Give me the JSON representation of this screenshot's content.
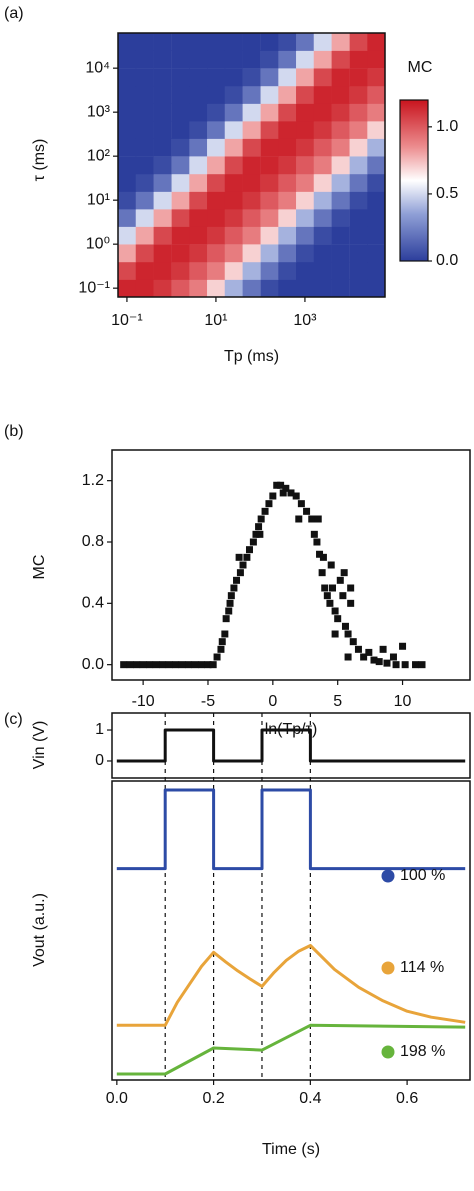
{
  "chart_data": [
    {
      "type": "heatmap",
      "panel_label": "(a)",
      "xlabel": "Tp (ms)",
      "ylabel": "τ (ms)",
      "colorbar_label": "MC",
      "xscale": "log",
      "yscale": "log",
      "xlim": [
        0.063,
        63000
      ],
      "ylim": [
        0.063,
        63000
      ],
      "xticks": [
        {
          "value": 0.1,
          "label": "10⁻¹"
        },
        {
          "value": 10,
          "label": "10¹"
        },
        {
          "value": 1000,
          "label": "10³"
        }
      ],
      "yticks": [
        {
          "value": 0.1,
          "label": "10⁻¹"
        },
        {
          "value": 1,
          "label": "10⁰"
        },
        {
          "value": 10,
          "label": "10¹"
        },
        {
          "value": 100,
          "label": "10²"
        },
        {
          "value": 1000,
          "label": "10³"
        },
        {
          "value": 10000,
          "label": "10⁴"
        }
      ],
      "x": [
        0.1,
        0.25,
        0.63,
        1.6,
        4,
        10,
        25,
        63,
        160,
        400,
        1000,
        2500,
        6300,
        16000,
        40000
      ],
      "y": [
        0.1,
        0.25,
        0.63,
        1.6,
        4,
        10,
        25,
        63,
        160,
        400,
        1000,
        2500,
        6300,
        16000,
        40000
      ],
      "z": [
        [
          1.15,
          1.15,
          1.1,
          1.0,
          0.9,
          0.7,
          0.4,
          0.2,
          0.05,
          0,
          0,
          0,
          0,
          0,
          0
        ],
        [
          1.05,
          1.15,
          1.15,
          1.1,
          1.0,
          0.9,
          0.7,
          0.4,
          0.2,
          0.05,
          0,
          0,
          0,
          0,
          0
        ],
        [
          0.8,
          1.05,
          1.15,
          1.15,
          1.1,
          1.0,
          0.9,
          0.7,
          0.4,
          0.2,
          0.05,
          0,
          0,
          0,
          0
        ],
        [
          0.5,
          0.8,
          1.05,
          1.15,
          1.15,
          1.1,
          1.0,
          0.9,
          0.7,
          0.4,
          0.2,
          0.05,
          0,
          0,
          0
        ],
        [
          0.2,
          0.5,
          0.8,
          1.05,
          1.15,
          1.15,
          1.1,
          1.0,
          0.9,
          0.7,
          0.4,
          0.2,
          0.05,
          0,
          0
        ],
        [
          0.05,
          0.2,
          0.5,
          0.8,
          1.05,
          1.15,
          1.15,
          1.1,
          1.0,
          0.9,
          0.7,
          0.4,
          0.2,
          0.05,
          0
        ],
        [
          0,
          0.05,
          0.2,
          0.5,
          0.8,
          1.05,
          1.15,
          1.15,
          1.1,
          1.0,
          0.9,
          0.7,
          0.4,
          0.2,
          0.05
        ],
        [
          0,
          0,
          0.05,
          0.2,
          0.5,
          0.8,
          1.05,
          1.15,
          1.15,
          1.1,
          1.0,
          0.9,
          0.7,
          0.4,
          0.2
        ],
        [
          0,
          0,
          0,
          0.05,
          0.2,
          0.5,
          0.8,
          1.05,
          1.15,
          1.15,
          1.1,
          1.0,
          0.9,
          0.7,
          0.4
        ],
        [
          0,
          0,
          0,
          0,
          0.05,
          0.2,
          0.5,
          0.8,
          1.05,
          1.15,
          1.15,
          1.1,
          1.0,
          0.9,
          0.7
        ],
        [
          0,
          0,
          0,
          0,
          0,
          0.05,
          0.2,
          0.5,
          0.8,
          1.05,
          1.15,
          1.15,
          1.1,
          1.0,
          0.9
        ],
        [
          0,
          0,
          0,
          0,
          0,
          0,
          0.05,
          0.2,
          0.5,
          0.8,
          1.05,
          1.15,
          1.15,
          1.1,
          1.0
        ],
        [
          0,
          0,
          0,
          0,
          0,
          0,
          0,
          0.05,
          0.2,
          0.5,
          0.8,
          1.05,
          1.15,
          1.15,
          1.1
        ],
        [
          0,
          0,
          0,
          0,
          0,
          0,
          0,
          0,
          0.05,
          0.2,
          0.5,
          0.8,
          1.05,
          1.15,
          1.15
        ],
        [
          0,
          0,
          0,
          0,
          0,
          0,
          0,
          0,
          0,
          0.05,
          0.2,
          0.5,
          0.8,
          1.05,
          1.15
        ]
      ],
      "vlim": [
        0,
        1.2
      ],
      "cticks": [
        {
          "value": 0,
          "label": "0.0"
        },
        0.5,
        {
          "value": 1,
          "label": "1.0"
        }
      ],
      "colormap": [
        {
          "value": 0,
          "color": "#2c3e9c"
        },
        {
          "value": 0.35,
          "color": "#8f9fd6"
        },
        {
          "value": 0.6,
          "color": "#ffffff"
        },
        {
          "value": 0.85,
          "color": "#ec8d8f"
        },
        {
          "value": 1.2,
          "color": "#c8141e"
        }
      ]
    },
    {
      "type": "scatter",
      "panel_label": "(b)",
      "xlabel": "ln(Tp/τ)",
      "ylabel": "MC",
      "color": "#111111",
      "xlim": [
        -12.4,
        15.2
      ],
      "ylim": [
        -0.1,
        1.4
      ],
      "xticks": [
        -10,
        -5,
        0,
        5,
        10
      ],
      "yticks": [
        {
          "value": 0,
          "label": "0.0"
        },
        0.4,
        0.8,
        1.2
      ],
      "x": [
        -11.5,
        -11,
        -10.5,
        -10,
        -9.5,
        -9,
        -8.5,
        -8,
        -7.5,
        -7,
        -6.5,
        -6,
        -5.5,
        -5,
        -4.6,
        -4.3,
        -4,
        -3.9,
        -3.7,
        -3.6,
        -3.4,
        -3.3,
        -3.2,
        -3,
        -2.8,
        -2.5,
        -2.3,
        -2,
        -1.8,
        -1.5,
        -1.3,
        -1.1,
        -0.9,
        -0.6,
        -0.3,
        0,
        0.3,
        0.6,
        1,
        1.4,
        1.8,
        2.2,
        2.6,
        3,
        3.2,
        3.4,
        3.6,
        3.8,
        4,
        4.2,
        4.4,
        4.6,
        4.8,
        5,
        5.2,
        5.4,
        5.6,
        5.8,
        6,
        6.2,
        6.6,
        7,
        7.4,
        7.8,
        8.2,
        8.8,
        9.5,
        10.2,
        11,
        11.5,
        8.5,
        9.3,
        10,
        4.5,
        3.9,
        5.5,
        6,
        3.5,
        -2.6,
        -1,
        0.8,
        2,
        4.8,
        5.8
      ],
      "y": [
        0,
        0,
        0,
        0,
        0,
        0,
        0,
        0,
        0,
        0,
        0,
        0,
        0,
        0,
        0,
        0.05,
        0.1,
        0.15,
        0.2,
        0.3,
        0.35,
        0.4,
        0.45,
        0.5,
        0.55,
        0.6,
        0.65,
        0.7,
        0.75,
        0.8,
        0.85,
        0.9,
        0.95,
        1.0,
        1.05,
        1.1,
        1.17,
        1.17,
        1.15,
        1.12,
        1.1,
        1.05,
        1.0,
        0.95,
        0.85,
        0.8,
        0.72,
        0.6,
        0.5,
        0.45,
        0.4,
        0.5,
        0.35,
        0.3,
        0.55,
        0.45,
        0.25,
        0.2,
        0.4,
        0.15,
        0.1,
        0.05,
        0.08,
        0.03,
        0.02,
        0.01,
        0,
        0,
        0,
        0,
        0.1,
        0.05,
        0.12,
        0.65,
        0.7,
        0.6,
        0.5,
        0.95,
        0.7,
        0.85,
        1.12,
        0.95,
        0.2,
        0.05
      ]
    },
    {
      "type": "line",
      "panel_label": "(c)",
      "ylabel": "Vin (V)",
      "color": "#111111",
      "xlim": [
        -0.01,
        0.73
      ],
      "ylim": [
        -0.55,
        1.55
      ],
      "yticks": [
        0,
        1
      ],
      "x": [
        0,
        0.1,
        0.1,
        0.2,
        0.2,
        0.3,
        0.3,
        0.4,
        0.4,
        0.72
      ],
      "values": [
        0,
        0,
        1,
        1,
        0,
        0,
        1,
        1,
        0,
        0
      ]
    },
    {
      "type": "line",
      "xlabel": "Time (s)",
      "ylabel": "Vout (a.u.)",
      "xlim": [
        -0.01,
        0.73
      ],
      "ylim": [
        0,
        10
      ],
      "xticks": [
        {
          "value": 0,
          "label": "0.0"
        },
        0.2,
        0.4,
        0.6
      ],
      "vlines": [
        0.1,
        0.2,
        0.3,
        0.4
      ],
      "series": [
        {
          "name": "100 %",
          "color": "#2d4ba6",
          "x": [
            0,
            0.1,
            0.1,
            0.2,
            0.2,
            0.3,
            0.3,
            0.4,
            0.4,
            0.72
          ],
          "values": [
            7.07,
            7.07,
            9.7,
            9.7,
            7.07,
            7.07,
            9.7,
            9.7,
            7.07,
            7.07
          ]
        },
        {
          "name": "114 %",
          "color": "#e8a43a",
          "x": [
            0,
            0.1,
            0.125,
            0.15,
            0.175,
            0.2,
            0.225,
            0.25,
            0.275,
            0.3,
            0.325,
            0.35,
            0.375,
            0.4,
            0.45,
            0.5,
            0.55,
            0.6,
            0.65,
            0.72
          ],
          "values": [
            1.83,
            1.83,
            2.6,
            3.2,
            3.8,
            4.27,
            3.95,
            3.65,
            3.38,
            3.13,
            3.6,
            4.0,
            4.3,
            4.5,
            3.7,
            3.1,
            2.65,
            2.3,
            2.1,
            1.93
          ]
        },
        {
          "name": "198 %",
          "color": "#66b43c",
          "x": [
            0,
            0.1,
            0.2,
            0.3,
            0.4,
            0.72
          ],
          "values": [
            0.2,
            0.2,
            1.07,
            1.0,
            1.83,
            1.77
          ]
        }
      ]
    }
  ]
}
